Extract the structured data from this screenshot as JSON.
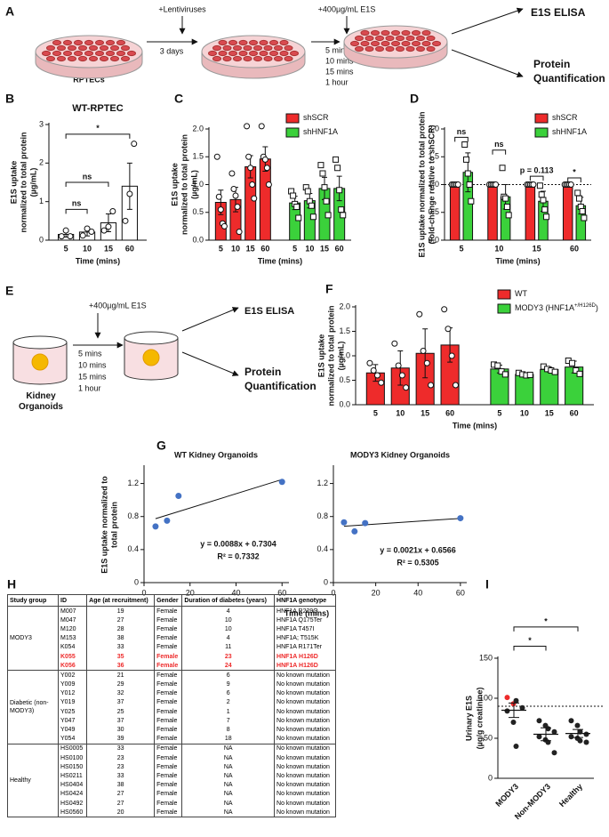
{
  "diagram_a": {
    "label": "A",
    "cells": "RPTECs",
    "step1": "+Lentiviruses",
    "wait": "3 days",
    "treatment": "+400µg/mL E1S",
    "times": [
      "5 mins",
      "10 mins",
      "15 mins",
      "1 hour"
    ],
    "outputs": [
      "E1S ELISA",
      "Protein Quantification"
    ]
  },
  "diagram_e": {
    "label": "E",
    "samples": "Kidney Organoids",
    "treatment": "+400µg/mL E1S",
    "times": [
      "5 mins",
      "10 mins",
      "15 mins",
      "1 hour"
    ],
    "outputs": [
      "E1S ELISA",
      "Protein Quantification"
    ]
  },
  "chart_data": [
    {
      "label": "B",
      "type": "bar",
      "title": "WT-RPTEC",
      "y_label": [
        "E1S uptake",
        "normalized to total protein",
        "(µg/mL)"
      ],
      "x_label": "Time (mins)",
      "categories": [
        "5",
        "10",
        "15",
        "60"
      ],
      "ylim": [
        0,
        3
      ],
      "yticks": [
        0,
        1,
        2,
        3
      ],
      "series": [
        {
          "color": "#ffffff",
          "marker": "circle",
          "values": [
            0.15,
            0.21,
            0.45,
            1.4
          ],
          "errors": [
            0.07,
            0.1,
            0.23,
            0.6
          ],
          "points": [
            [
              0.1,
              0.25,
              0.1
            ],
            [
              0.12,
              0.3,
              0.22
            ],
            [
              0.25,
              0.35,
              0.75
            ],
            [
              0.5,
              1.2,
              2.5
            ]
          ]
        }
      ],
      "annotations": [
        "ns",
        "ns",
        "*"
      ]
    },
    {
      "label": "C",
      "type": "bar",
      "y_label": [
        "E1S uptake",
        "normalized to total protein",
        "(µg/mL)"
      ],
      "x_label": "Time (mins)",
      "categories": [
        "5",
        "10",
        "15",
        "60"
      ],
      "ylim": [
        0,
        2
      ],
      "yticks": [
        {
          "value": 0,
          "label": "0.0"
        },
        {
          "value": 0.5,
          "label": "0.5"
        },
        {
          "value": 1,
          "label": "1.0"
        },
        {
          "value": 1.5,
          "label": "1.5"
        },
        {
          "value": 2,
          "label": "2.0"
        }
      ],
      "series": [
        {
          "name": "shSCR",
          "color": "#ee2b2b",
          "marker": "circle",
          "values": [
            0.68,
            0.73,
            1.32,
            1.46
          ],
          "errors": [
            0.22,
            0.22,
            0.2,
            0.22
          ],
          "points": [
            [
              1.5,
              0.78,
              0.55,
              0.3,
              0.25
            ],
            [
              1.2,
              0.92,
              0.8,
              0.6,
              0.15
            ],
            [
              2.05,
              1.5,
              1.3,
              1.0,
              0.75
            ],
            [
              2.05,
              1.5,
              1.45,
              1.3,
              1.0
            ]
          ]
        },
        {
          "name": "shHNF1A",
          "color": "#3bd13b",
          "marker": "square",
          "values": [
            0.67,
            0.71,
            0.93,
            0.93
          ],
          "errors": [
            0.12,
            0.13,
            0.2,
            0.22
          ],
          "points": [
            [
              0.88,
              0.8,
              0.65,
              0.6,
              0.4
            ],
            [
              0.95,
              0.88,
              0.7,
              0.62,
              0.42
            ],
            [
              1.35,
              1.2,
              0.95,
              0.7,
              0.45
            ],
            [
              1.45,
              1.3,
              0.9,
              0.55,
              0.45
            ]
          ]
        }
      ]
    },
    {
      "label": "D",
      "type": "bar",
      "y_label": [
        "E1S uptake normalized to total protein",
        "(fold-change relative to shSCR)"
      ],
      "x_label": "Time (mins)",
      "categories": [
        "5",
        "10",
        "15",
        "60"
      ],
      "ylim": [
        0,
        2
      ],
      "reference_line": 1,
      "yticks": [
        {
          "value": 0,
          "label": "0.0"
        },
        {
          "value": 0.5,
          "label": "0.5"
        },
        {
          "value": 1,
          "label": "1.0"
        },
        {
          "value": 1.5,
          "label": "1.5"
        },
        {
          "value": 2,
          "label": "2.0"
        }
      ],
      "series": [
        {
          "name": "shSCR",
          "color": "#ee2b2b",
          "marker": "circle",
          "values": [
            1,
            1,
            1,
            1
          ],
          "errors": [
            0,
            0,
            0,
            0
          ],
          "points": [
            [
              1,
              1,
              1,
              1,
              1
            ],
            [
              1,
              1,
              1,
              1,
              1
            ],
            [
              1,
              1,
              1,
              1,
              1
            ],
            [
              1,
              1,
              1,
              1,
              1
            ]
          ]
        },
        {
          "name": "shHNF1A",
          "color": "#3bd13b",
          "marker": "square",
          "values": [
            1.22,
            0.78,
            0.7,
            0.62
          ],
          "errors": [
            0.35,
            0.22,
            0.18,
            0.15
          ],
          "points": [
            [
              1.72,
              1.45,
              1.2,
              1.0,
              0.7
            ],
            [
              1.3,
              0.78,
              0.75,
              0.6,
              0.45
            ],
            [
              0.98,
              0.82,
              0.72,
              0.55,
              0.42
            ],
            [
              0.85,
              0.75,
              0.6,
              0.52,
              0.4
            ]
          ]
        }
      ],
      "annotations": [
        "ns",
        "ns",
        "p = 0.113",
        "*"
      ]
    },
    {
      "label": "F",
      "type": "bar",
      "y_label": [
        "E1S uptake",
        "normalized to total protein",
        "(µg/mL)"
      ],
      "x_label": "Time (mins)",
      "categories": [
        "5",
        "10",
        "15",
        "60"
      ],
      "ylim": [
        0,
        2
      ],
      "yticks": [
        {
          "value": 0,
          "label": "0.0"
        },
        {
          "value": 0.5,
          "label": "0.5"
        },
        {
          "value": 1,
          "label": "1.0"
        },
        {
          "value": 1.5,
          "label": "1.5"
        },
        {
          "value": 2,
          "label": "2.0"
        }
      ],
      "series": [
        {
          "name": "WT",
          "color": "#ee2b2b",
          "marker": "circle",
          "values": [
            0.65,
            0.75,
            1.05,
            1.22
          ],
          "errors": [
            0.17,
            0.35,
            0.5,
            0.35
          ],
          "points": [
            [
              0.85,
              0.7,
              0.6,
              0.45
            ],
            [
              1.25,
              0.8,
              0.6,
              0.35
            ],
            [
              1.85,
              1.1,
              0.85,
              0.4
            ],
            [
              1.95,
              1.55,
              1.0,
              0.4
            ]
          ]
        },
        {
          "name": "MODY3 (HNF1A",
          "name_superscript": "+/H126D",
          "name_suffix": ")",
          "color": "#3bd13b",
          "marker": "square",
          "values": [
            0.73,
            0.62,
            0.72,
            0.77
          ],
          "errors": [
            0.08,
            0.03,
            0.05,
            0.12
          ],
          "points": [
            [
              0.82,
              0.8,
              0.68,
              0.62
            ],
            [
              0.65,
              0.62,
              0.6,
              0.61
            ],
            [
              0.78,
              0.73,
              0.7,
              0.67
            ],
            [
              0.9,
              0.85,
              0.7,
              0.63
            ]
          ]
        }
      ]
    },
    {
      "label": "G",
      "type": "scatter",
      "title": "WT Kidney Organoids",
      "y_label": [
        "E1S uptake normalized to",
        "total protein"
      ],
      "x_label": "Time (mins)",
      "x": [
        5,
        10,
        15,
        60
      ],
      "values": [
        0.68,
        0.75,
        1.05,
        1.22
      ],
      "color": "#4472c4",
      "trendline": true,
      "xlim": [
        0,
        63
      ],
      "ylim": [
        0,
        1.4
      ],
      "xticks": [
        0,
        20,
        40,
        60
      ],
      "yticks": [
        0,
        0.4,
        0.8,
        1.2
      ],
      "equation": "y = 0.0088x + 0.7304",
      "r_squared": "R² = 0.7332"
    },
    {
      "type": "scatter",
      "title": "MODY3 Kidney Organoids",
      "x": [
        5,
        10,
        15,
        60
      ],
      "values": [
        0.73,
        0.62,
        0.72,
        0.78
      ],
      "color": "#4472c4",
      "trendline": true,
      "xlim": [
        0,
        63
      ],
      "ylim": [
        0,
        1.4
      ],
      "xticks": [
        0,
        20,
        40,
        60
      ],
      "yticks": [
        0,
        0.4,
        0.8,
        1.2
      ],
      "equation": "y = 0.0021x + 0.6566",
      "r_squared": "R² = 0.5305"
    },
    {
      "label": "I",
      "type": "dot",
      "y_label": [
        "Urinary E1S",
        "(µg/g creatinine)"
      ],
      "categories": [
        "MODY3",
        "Non-MODY3",
        "Healthy"
      ],
      "ylim": [
        0,
        150
      ],
      "yticks": [
        0,
        50,
        100,
        150
      ],
      "reference_line": 90,
      "values": [
        85,
        55,
        56
      ],
      "errors": [
        9,
        8,
        5
      ],
      "points": [
        [
          101,
          93,
          97,
          88,
          84,
          70,
          40
        ],
        [
          72,
          66,
          62,
          58,
          52,
          48,
          45,
          32
        ],
        [
          72,
          66,
          58,
          55,
          52,
          50,
          47,
          45
        ]
      ],
      "point_colors": [
        [
          "#ee2b2b",
          "#ee2b2b",
          "#222222",
          "#222222",
          "#222222",
          "#222222",
          "#222222"
        ],
        [
          "#222222",
          "#222222",
          "#222222",
          "#222222",
          "#222222",
          "#222222",
          "#222222",
          "#222222"
        ],
        [
          "#222222",
          "#222222",
          "#222222",
          "#222222",
          "#222222",
          "#222222",
          "#222222",
          "#222222"
        ]
      ],
      "annotations": [
        "*",
        "*"
      ]
    }
  ],
  "table": {
    "label": "H",
    "header": [
      "Study group",
      "ID",
      "Age (at recruitment)",
      "Gender",
      "Duration of diabetes (years)",
      "HNF1A genotype"
    ],
    "groups": [
      {
        "name": "MODY3",
        "highlight_color": "#ee2b2b",
        "highlighted_rows": [
          5,
          6
        ],
        "rows": [
          [
            "M007",
            "19",
            "Female",
            "4",
            "HNF1A R229Q"
          ],
          [
            "M047",
            "27",
            "Female",
            "10",
            "HNF1A Q175Ter"
          ],
          [
            "M120",
            "28",
            "Female",
            "10",
            "HNF1A T457I"
          ],
          [
            "M153",
            "38",
            "Female",
            "4",
            "HNF1A; T515K"
          ],
          [
            "K054",
            "33",
            "Female",
            "11",
            "HNF1A R171Ter"
          ],
          [
            "K055",
            "35",
            "Female",
            "23",
            "HNF1A H126D"
          ],
          [
            "K056",
            "36",
            "Female",
            "24",
            "HNF1A H126D"
          ]
        ]
      },
      {
        "name": "Diabetic (non-MODY3)",
        "rows": [
          [
            "Y002",
            "21",
            "Female",
            "6",
            "No known mutation"
          ],
          [
            "Y009",
            "29",
            "Female",
            "9",
            "No known mutation"
          ],
          [
            "Y012",
            "32",
            "Female",
            "6",
            "No known mutation"
          ],
          [
            "Y019",
            "37",
            "Female",
            "2",
            "No known mutation"
          ],
          [
            "Y025",
            "25",
            "Female",
            "1",
            "No known mutation"
          ],
          [
            "Y047",
            "37",
            "Female",
            "7",
            "No known mutation"
          ],
          [
            "Y049",
            "30",
            "Female",
            "8",
            "No known mutation"
          ],
          [
            "Y054",
            "39",
            "Female",
            "18",
            "No known mutation"
          ]
        ]
      },
      {
        "name": "Healthy",
        "rows": [
          [
            "HS0005",
            "33",
            "Female",
            "NA",
            "No known mutation"
          ],
          [
            "HS0100",
            "23",
            "Female",
            "NA",
            "No known mutation"
          ],
          [
            "HS0150",
            "23",
            "Female",
            "NA",
            "No known mutation"
          ],
          [
            "HS0211",
            "33",
            "Female",
            "NA",
            "No known mutation"
          ],
          [
            "HS0404",
            "38",
            "Female",
            "NA",
            "No known mutation"
          ],
          [
            "HS0424",
            "27",
            "Female",
            "NA",
            "No known mutation"
          ],
          [
            "HS0492",
            "27",
            "Female",
            "NA",
            "No known mutation"
          ],
          [
            "HS0560",
            "20",
            "Female",
            "NA",
            "No known mutation"
          ]
        ]
      }
    ]
  }
}
